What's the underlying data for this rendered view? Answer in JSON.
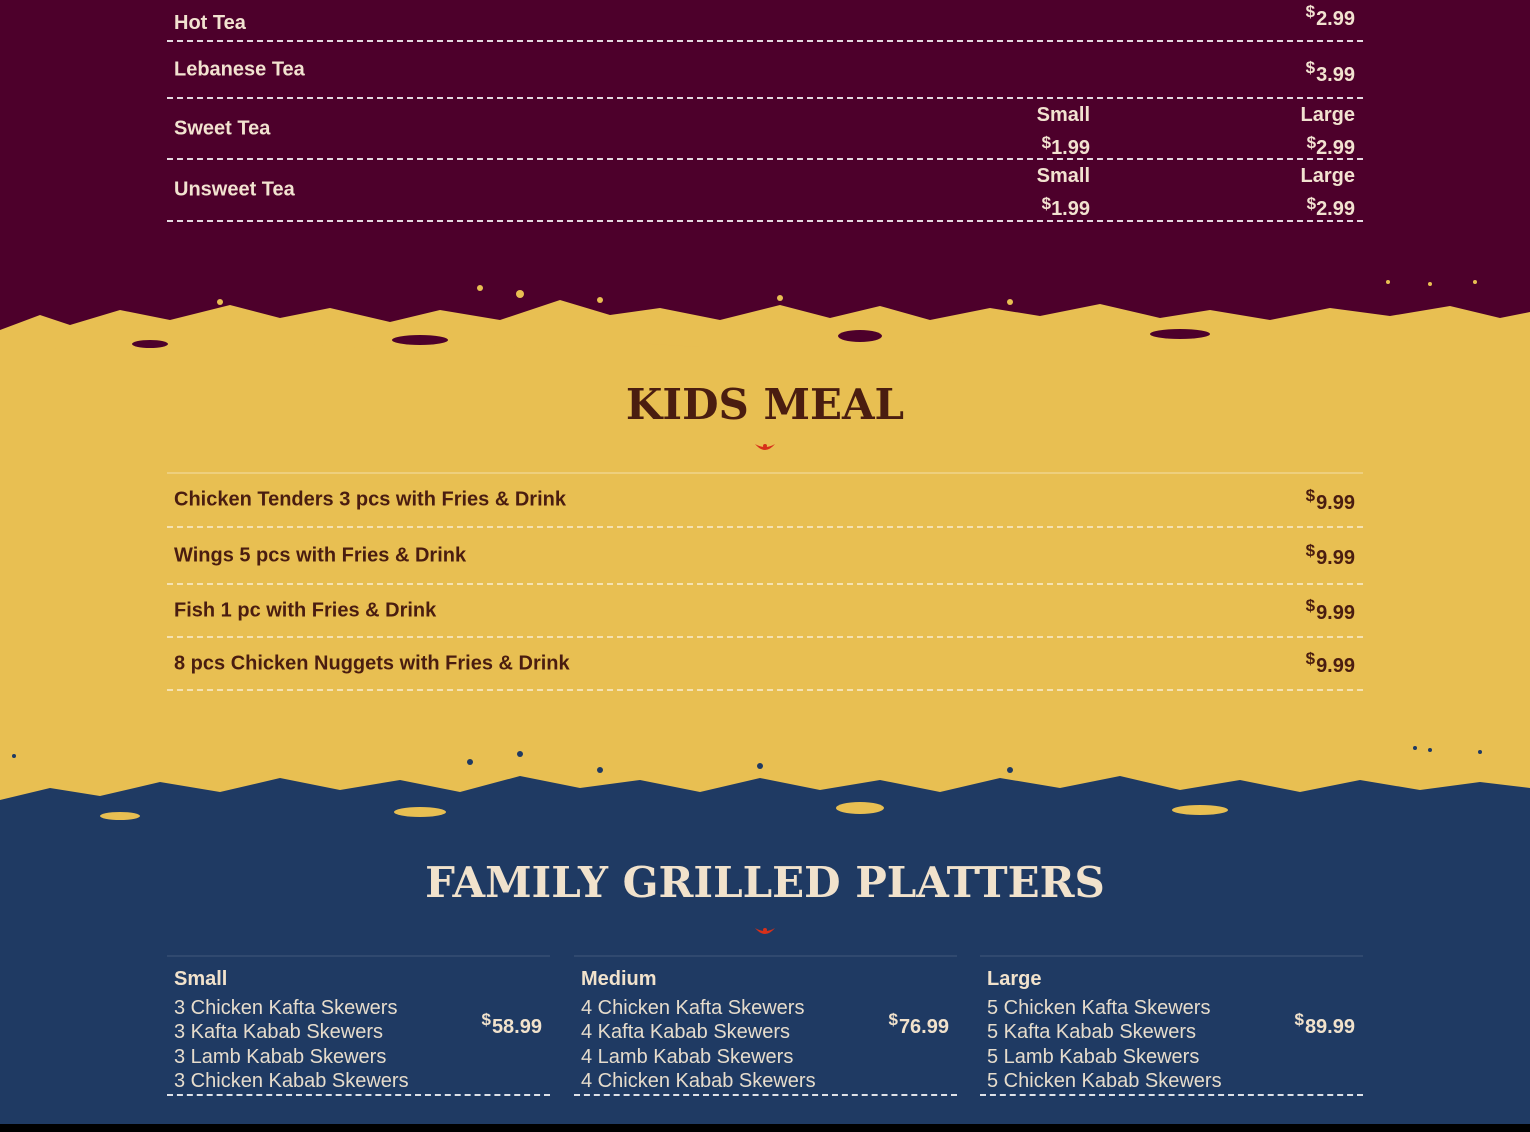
{
  "colors": {
    "tea_bg": "#4d002b",
    "kids_bg": "#e8bf52",
    "family_bg": "#1f3a63",
    "accent": "#d7301a"
  },
  "tea": {
    "items": [
      {
        "name": "Hot Tea",
        "price": "2.99"
      },
      {
        "name": "Lebanese Tea",
        "price": "3.99"
      },
      {
        "name": "Sweet Tea",
        "small_label": "Small",
        "small_price": "1.99",
        "large_label": "Large",
        "large_price": "2.99"
      },
      {
        "name": "Unsweet Tea",
        "small_label": "Small",
        "small_price": "1.99",
        "large_label": "Large",
        "large_price": "2.99"
      }
    ]
  },
  "kids": {
    "title": "KIDS MEAL",
    "items": [
      {
        "name": "Chicken Tenders 3 pcs with Fries & Drink",
        "price": "9.99"
      },
      {
        "name": "Wings 5 pcs with Fries & Drink",
        "price": "9.99"
      },
      {
        "name": "Fish 1 pc with Fries & Drink",
        "price": "9.99"
      },
      {
        "name": "8 pcs Chicken Nuggets with Fries & Drink",
        "price": "9.99"
      }
    ]
  },
  "family": {
    "title": "FAMILY GRILLED PLATTERS",
    "platters": [
      {
        "size": "Small",
        "price": "58.99",
        "items": [
          "3 Chicken Kafta Skewers",
          "3 Kafta Kabab Skewers",
          "3 Lamb Kabab Skewers",
          "3 Chicken Kabab Skewers"
        ]
      },
      {
        "size": "Medium",
        "price": "76.99",
        "items": [
          "4 Chicken Kafta Skewers",
          "4 Kafta Kabab Skewers",
          "4 Lamb Kabab Skewers",
          "4 Chicken Kabab Skewers"
        ]
      },
      {
        "size": "Large",
        "price": "89.99",
        "items": [
          "5 Chicken Kafta Skewers",
          "5 Kafta Kabab Skewers",
          "5 Lamb Kabab Skewers",
          "5 Chicken Kabab Skewers"
        ]
      }
    ]
  },
  "currency_symbol": "$"
}
